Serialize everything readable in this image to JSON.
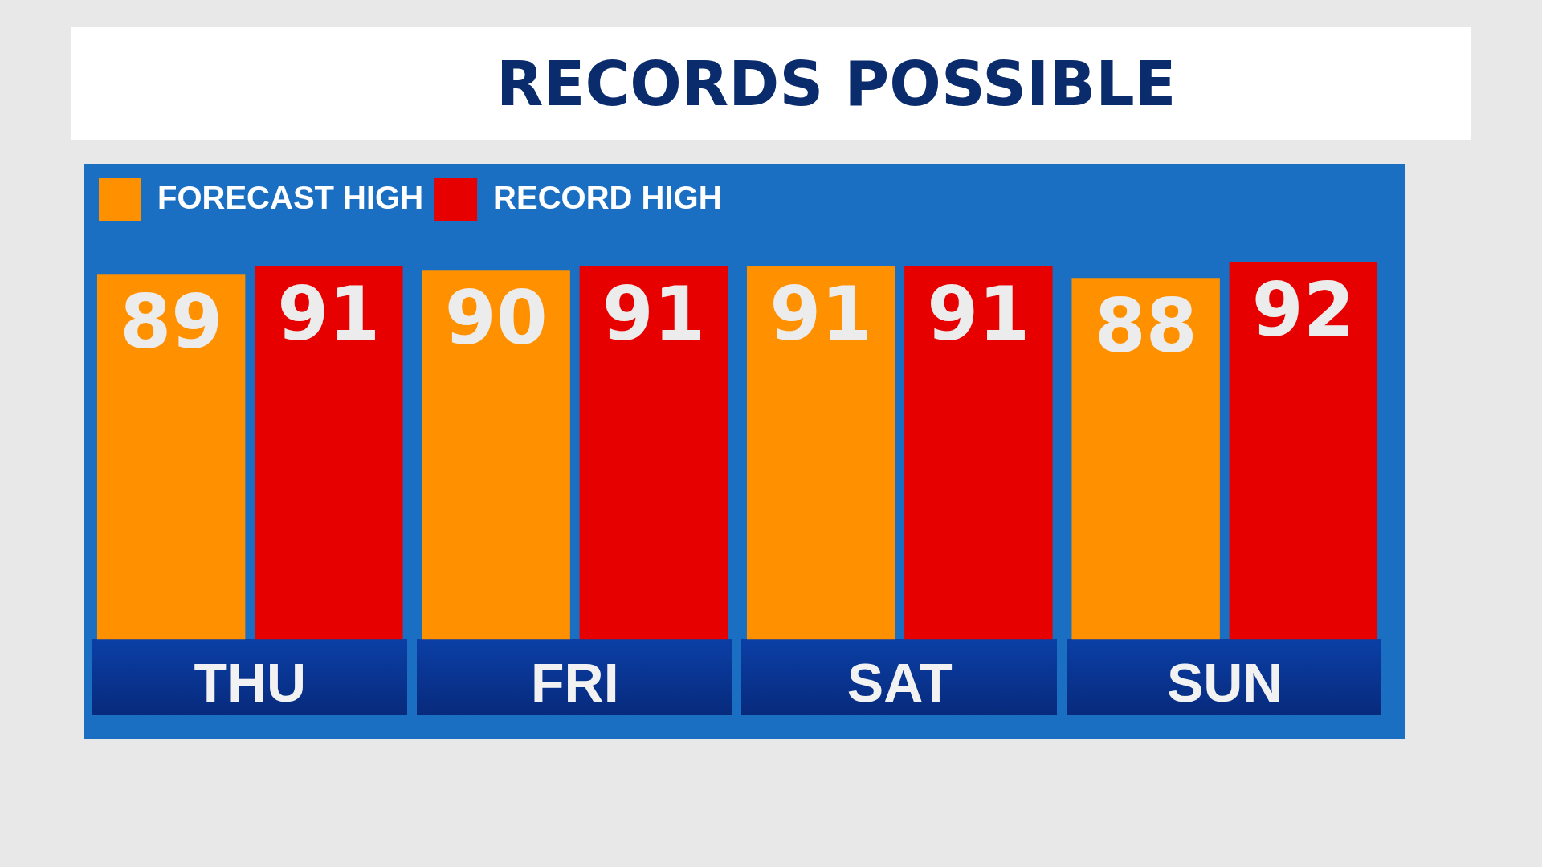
{
  "chart_data": {
    "type": "bar",
    "title": "RECORDS POSSIBLE",
    "categories": [
      "THU",
      "FRI",
      "SAT",
      "SUN"
    ],
    "series": [
      {
        "name": "FORECAST HIGH",
        "color": "#ff9000",
        "values": [
          89,
          90,
          91,
          88
        ]
      },
      {
        "name": "RECORD HIGH",
        "color": "#e60000",
        "values": [
          91,
          91,
          91,
          92
        ]
      }
    ],
    "tick_labels": "x",
    "data_labels": true,
    "legend": "top left",
    "grid": false
  }
}
